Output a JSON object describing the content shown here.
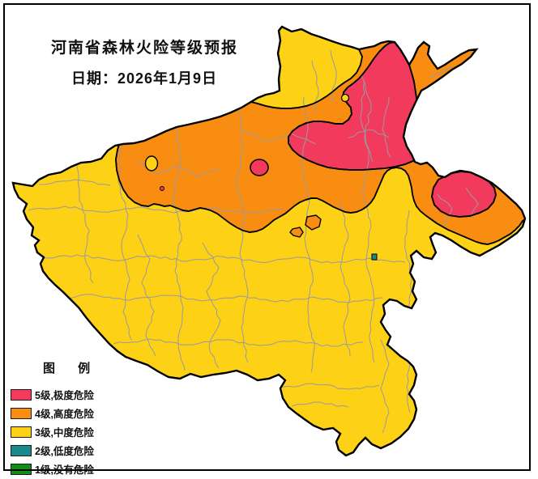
{
  "header": {
    "title": "河南省森林火险等级预报",
    "date_line": "日期：2026年1月9日"
  },
  "legend": {
    "title": "图 例",
    "items": [
      {
        "label": "5级,极度危险",
        "color": "#F23B5C"
      },
      {
        "label": "4级,高度危险",
        "color": "#F98D11"
      },
      {
        "label": "3级,中度危险",
        "color": "#FCD116"
      },
      {
        "label": "2级,低度危险",
        "color": "#19898C"
      },
      {
        "label": "1级,没有危险",
        "color": "#0F9015"
      }
    ]
  },
  "map": {
    "region": "河南省",
    "boundary_color": "#000000",
    "county_line_color": "#9a9aa0",
    "background_color": "#ffffff"
  }
}
